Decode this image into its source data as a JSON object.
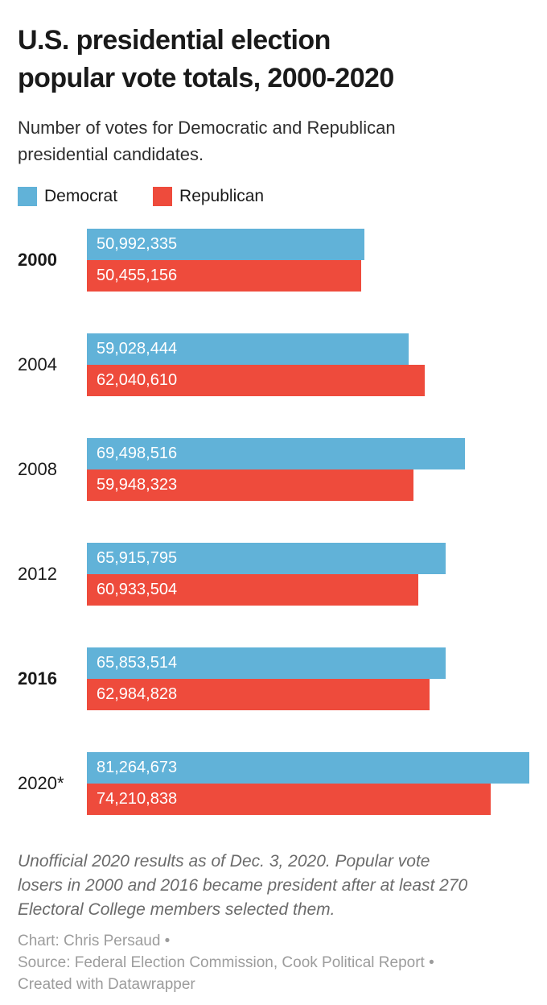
{
  "header": {
    "title_lines": [
      "U.S. presidential election",
      "popular vote totals, 2000-2020"
    ],
    "subtitle_lines": [
      "Number of votes for Democratic and Republican",
      "presidential candidates."
    ]
  },
  "colors": {
    "democrat": "#61b2d8",
    "republican": "#ee4b3c",
    "text_dark": "#1a1a1a",
    "footnote_gray": "#6b6b6b",
    "credits_gray": "#9c9c9c"
  },
  "legend": [
    {
      "label": "Democrat",
      "color": "#61b2d8"
    },
    {
      "label": "Republican",
      "color": "#ee4b3c"
    }
  ],
  "chart_data": {
    "type": "bar",
    "orientation": "horizontal",
    "title": "U.S. presidential election popular vote totals, 2000-2020",
    "subtitle": "Number of votes for Democratic and Republican presidential candidates.",
    "categories": [
      "2000",
      "2004",
      "2008",
      "2012",
      "2016",
      "2020*"
    ],
    "categories_bold": [
      true,
      false,
      false,
      false,
      true,
      false
    ],
    "series": [
      {
        "name": "Democrat",
        "color": "#61b2d8",
        "values": [
          50992335,
          59028444,
          69498516,
          65915795,
          65853514,
          81264673
        ],
        "labels": [
          "50,992,335",
          "59,028,444",
          "69,498,516",
          "65,915,795",
          "65,853,514",
          "81,264,673"
        ]
      },
      {
        "name": "Republican",
        "color": "#ee4b3c",
        "values": [
          50455156,
          62040610,
          59948323,
          60933504,
          62984828,
          74210838
        ],
        "labels": [
          "50,455,156",
          "62,040,610",
          "59,948,323",
          "60,933,504",
          "62,984,828",
          "74,210,838"
        ]
      }
    ],
    "xlim": [
      0,
      81264673
    ],
    "grid": false,
    "legend_position": "top",
    "value_labels": "inside-left"
  },
  "footer": {
    "footnote_lines": [
      "Unofficial 2020 results as of Dec. 3, 2020. Popular vote",
      "losers in 2000 and 2016 became president after at least 270",
      "Electoral College members selected them."
    ],
    "credits_lines": [
      "Chart: Chris Persaud •",
      "Source: Federal Election Commission, Cook Political Report •",
      "Created with Datawrapper"
    ]
  }
}
